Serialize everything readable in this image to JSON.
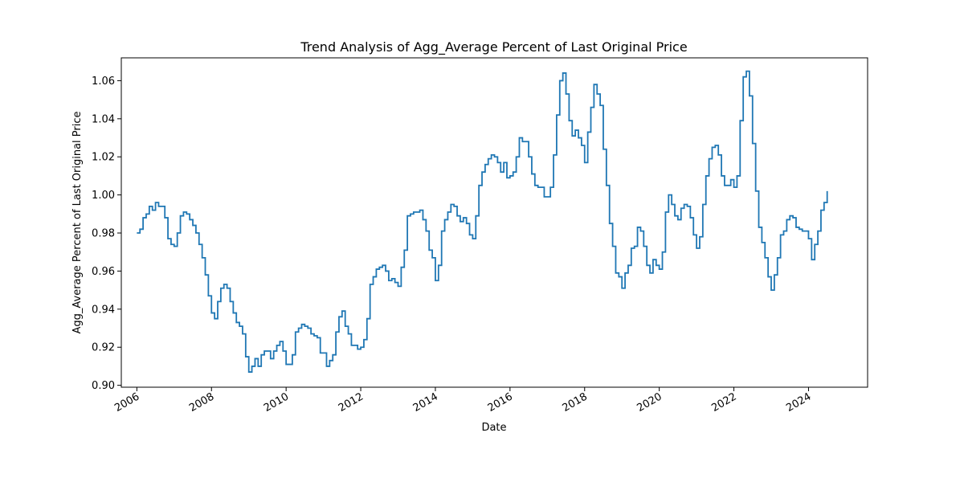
{
  "chart_data": {
    "type": "line",
    "title": "Trend Analysis of Agg_Average Percent of Last Original Price",
    "xlabel": "Date",
    "ylabel": "Agg_Average Percent of Last Original Price",
    "xlim": [
      "2005-08-01",
      "2025-08-01"
    ],
    "ylim": [
      0.899,
      1.072
    ],
    "x_ticks": [
      "2006",
      "2008",
      "2010",
      "2012",
      "2014",
      "2016",
      "2018",
      "2020",
      "2022",
      "2024"
    ],
    "y_ticks": [
      "0.90",
      "0.92",
      "0.94",
      "0.96",
      "0.98",
      "1.00",
      "1.02",
      "1.04",
      "1.06"
    ],
    "grid": false,
    "line_color": "#1f77b4",
    "series": [
      {
        "x": [
          "2006-01",
          "2006-02",
          "2006-03",
          "2006-04",
          "2006-05",
          "2006-06",
          "2006-07",
          "2006-08",
          "2006-09",
          "2006-10",
          "2006-11",
          "2006-12",
          "2007-01",
          "2007-02",
          "2007-03",
          "2007-04",
          "2007-05",
          "2007-06",
          "2007-07",
          "2007-08",
          "2007-09",
          "2007-10",
          "2007-11",
          "2007-12",
          "2008-01",
          "2008-02",
          "2008-03",
          "2008-04",
          "2008-05",
          "2008-06",
          "2008-07",
          "2008-08",
          "2008-09",
          "2008-10",
          "2008-11",
          "2008-12",
          "2009-01",
          "2009-02",
          "2009-03",
          "2009-04",
          "2009-05",
          "2009-06",
          "2009-07",
          "2009-08",
          "2009-09",
          "2009-10",
          "2009-11",
          "2009-12",
          "2010-01",
          "2010-02",
          "2010-03",
          "2010-04",
          "2010-05",
          "2010-06",
          "2010-07",
          "2010-08",
          "2010-09",
          "2010-10",
          "2010-11",
          "2010-12",
          "2011-01",
          "2011-02",
          "2011-03",
          "2011-04",
          "2011-05",
          "2011-06",
          "2011-07",
          "2011-08",
          "2011-09",
          "2011-10",
          "2011-11",
          "2011-12",
          "2012-01",
          "2012-02",
          "2012-03",
          "2012-04",
          "2012-05",
          "2012-06",
          "2012-07",
          "2012-08",
          "2012-09",
          "2012-10",
          "2012-11",
          "2012-12",
          "2013-01",
          "2013-02",
          "2013-03",
          "2013-04",
          "2013-05",
          "2013-06",
          "2013-07",
          "2013-08",
          "2013-09",
          "2013-10",
          "2013-11",
          "2013-12",
          "2014-01",
          "2014-02",
          "2014-03",
          "2014-04",
          "2014-05",
          "2014-06",
          "2014-07",
          "2014-08",
          "2014-09",
          "2014-10",
          "2014-11",
          "2014-12",
          "2015-01",
          "2015-02",
          "2015-03",
          "2015-04",
          "2015-05",
          "2015-06",
          "2015-07",
          "2015-08",
          "2015-09",
          "2015-10",
          "2015-11",
          "2015-12",
          "2016-01",
          "2016-02",
          "2016-03",
          "2016-04",
          "2016-05",
          "2016-06",
          "2016-07",
          "2016-08",
          "2016-09",
          "2016-10",
          "2016-11",
          "2016-12",
          "2017-01",
          "2017-02",
          "2017-03",
          "2017-04",
          "2017-05",
          "2017-06",
          "2017-07",
          "2017-08",
          "2017-09",
          "2017-10",
          "2017-11",
          "2017-12",
          "2018-01",
          "2018-02",
          "2018-03",
          "2018-04",
          "2018-05",
          "2018-06",
          "2018-07",
          "2018-08",
          "2018-09",
          "2018-10",
          "2018-11",
          "2018-12",
          "2019-01",
          "2019-02",
          "2019-03",
          "2019-04",
          "2019-05",
          "2019-06",
          "2019-07",
          "2019-08",
          "2019-09",
          "2019-10",
          "2019-11",
          "2019-12",
          "2020-01",
          "2020-02",
          "2020-03",
          "2020-04",
          "2020-05",
          "2020-06",
          "2020-07",
          "2020-08",
          "2020-09",
          "2020-10",
          "2020-11",
          "2020-12",
          "2021-01",
          "2021-02",
          "2021-03",
          "2021-04",
          "2021-05",
          "2021-06",
          "2021-07",
          "2021-08",
          "2021-09",
          "2021-10",
          "2021-11",
          "2021-12",
          "2022-01",
          "2022-02",
          "2022-03",
          "2022-04",
          "2022-05",
          "2022-06",
          "2022-07",
          "2022-08",
          "2022-09",
          "2022-10",
          "2022-11",
          "2022-12",
          "2023-01",
          "2023-02",
          "2023-03",
          "2023-04",
          "2023-05",
          "2023-06",
          "2023-07",
          "2023-08",
          "2023-09",
          "2023-10",
          "2023-11",
          "2023-12",
          "2024-01",
          "2024-02",
          "2024-03",
          "2024-04",
          "2024-05",
          "2024-06",
          "2024-07"
        ],
        "values": [
          0.98,
          0.982,
          0.988,
          0.99,
          0.994,
          0.992,
          0.996,
          0.994,
          0.994,
          0.988,
          0.977,
          0.974,
          0.973,
          0.98,
          0.989,
          0.991,
          0.99,
          0.987,
          0.984,
          0.98,
          0.974,
          0.967,
          0.958,
          0.947,
          0.938,
          0.935,
          0.944,
          0.951,
          0.953,
          0.951,
          0.944,
          0.938,
          0.933,
          0.931,
          0.927,
          0.915,
          0.907,
          0.91,
          0.914,
          0.91,
          0.916,
          0.918,
          0.918,
          0.914,
          0.918,
          0.921,
          0.923,
          0.918,
          0.911,
          0.911,
          0.916,
          0.928,
          0.93,
          0.932,
          0.931,
          0.93,
          0.927,
          0.926,
          0.925,
          0.917,
          0.917,
          0.91,
          0.913,
          0.916,
          0.928,
          0.936,
          0.939,
          0.931,
          0.927,
          0.921,
          0.921,
          0.919,
          0.92,
          0.924,
          0.935,
          0.953,
          0.957,
          0.961,
          0.962,
          0.963,
          0.96,
          0.955,
          0.956,
          0.954,
          0.952,
          0.962,
          0.971,
          0.989,
          0.99,
          0.991,
          0.991,
          0.992,
          0.987,
          0.981,
          0.971,
          0.967,
          0.955,
          0.963,
          0.981,
          0.987,
          0.991,
          0.995,
          0.994,
          0.989,
          0.986,
          0.988,
          0.985,
          0.979,
          0.977,
          0.989,
          1.005,
          1.012,
          1.016,
          1.019,
          1.021,
          1.02,
          1.017,
          1.012,
          1.017,
          1.009,
          1.01,
          1.012,
          1.02,
          1.03,
          1.028,
          1.028,
          1.02,
          1.011,
          1.005,
          1.004,
          1.004,
          0.999,
          0.999,
          1.004,
          1.021,
          1.042,
          1.06,
          1.064,
          1.053,
          1.039,
          1.031,
          1.034,
          1.03,
          1.026,
          1.017,
          1.033,
          1.046,
          1.058,
          1.053,
          1.047,
          1.024,
          1.005,
          0.985,
          0.973,
          0.959,
          0.957,
          0.951,
          0.959,
          0.963,
          0.972,
          0.973,
          0.983,
          0.981,
          0.973,
          0.963,
          0.959,
          0.966,
          0.963,
          0.961,
          0.97,
          0.991,
          1.0,
          0.995,
          0.989,
          0.987,
          0.993,
          0.995,
          0.994,
          0.988,
          0.979,
          0.972,
          0.978,
          0.995,
          1.01,
          1.019,
          1.025,
          1.026,
          1.021,
          1.01,
          1.005,
          1.005,
          1.008,
          1.004,
          1.01,
          1.039,
          1.062,
          1.065,
          1.052,
          1.027,
          1.002,
          0.983,
          0.975,
          0.967,
          0.957,
          0.95,
          0.958,
          0.967,
          0.979,
          0.981,
          0.987,
          0.989,
          0.988,
          0.983,
          0.982,
          0.981,
          0.981,
          0.977,
          0.966,
          0.974,
          0.981,
          0.992,
          0.996,
          1.002
        ]
      }
    ]
  }
}
